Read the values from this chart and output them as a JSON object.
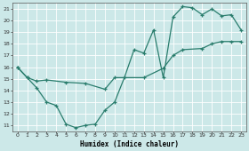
{
  "xlabel": "Humidex (Indice chaleur)",
  "bg_color": "#cce8e8",
  "line_color": "#2a7d6d",
  "grid_color": "#ffffff",
  "xlim": [
    -0.5,
    23.5
  ],
  "ylim": [
    10.5,
    21.5
  ],
  "xticks": [
    0,
    1,
    2,
    3,
    4,
    5,
    6,
    7,
    8,
    9,
    10,
    11,
    12,
    13,
    14,
    15,
    16,
    17,
    18,
    19,
    20,
    21,
    22,
    23
  ],
  "yticks": [
    11,
    12,
    13,
    14,
    15,
    16,
    17,
    18,
    19,
    20,
    21
  ],
  "line1_x": [
    0,
    1,
    2,
    3,
    4,
    5,
    6,
    7,
    8,
    9,
    10,
    11,
    12,
    13,
    14,
    15,
    16,
    17,
    18,
    19,
    20,
    21,
    22,
    23
  ],
  "line1_y": [
    16.0,
    15.1,
    14.2,
    13.0,
    12.7,
    11.1,
    10.8,
    11.0,
    11.1,
    12.3,
    13.0,
    15.1,
    17.5,
    17.2,
    19.2,
    15.1,
    20.3,
    21.2,
    21.1,
    20.5,
    21.0,
    20.4,
    20.5,
    19.2
  ],
  "line2_x": [
    0,
    1,
    2,
    3,
    5,
    7,
    9,
    10,
    13,
    15,
    16,
    17,
    19,
    20,
    21,
    22,
    23
  ],
  "line2_y": [
    16.0,
    15.1,
    14.8,
    14.9,
    14.7,
    14.6,
    14.1,
    15.1,
    15.1,
    15.9,
    17.0,
    17.5,
    17.6,
    18.0,
    18.2,
    18.2,
    18.2
  ]
}
